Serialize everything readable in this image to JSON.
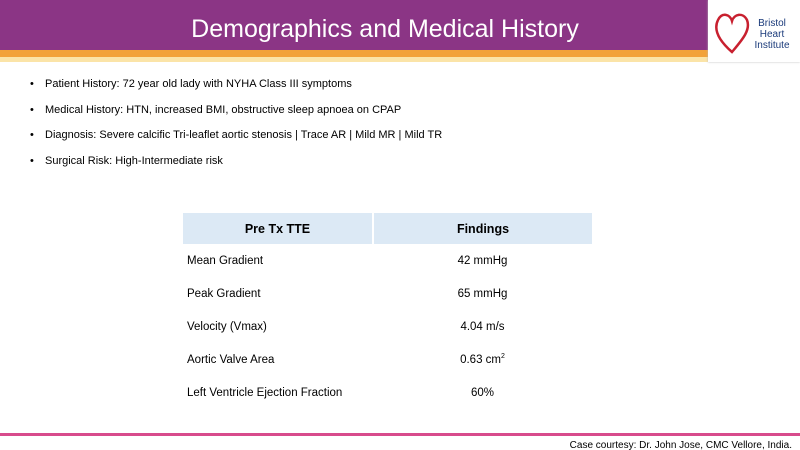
{
  "header": {
    "title": "Demographics and Medical History",
    "logo": [
      "Bristol",
      "Heart",
      "Institute"
    ]
  },
  "bullets": [
    "Patient History: 72 year old lady with NYHA Class III symptoms",
    "Medical History: HTN, increased BMI, obstructive sleep apnoea on CPAP",
    "Diagnosis: Severe calcific Tri-leaflet aortic stenosis | Trace AR | Mild MR | Mild TR",
    "Surgical Risk: High-Intermediate risk"
  ],
  "table": {
    "headers": [
      "Pre Tx TTE",
      "Findings"
    ],
    "rows": [
      [
        "Mean Gradient",
        "42 mmHg"
      ],
      [
        "Peak Gradient",
        "65 mmHg"
      ],
      [
        "Velocity (Vmax)",
        "4.04 m/s"
      ],
      [
        "Aortic Valve Area",
        {
          "text": "0.63 cm",
          "sup": "2"
        }
      ],
      [
        "Left Ventricle Ejection Fraction",
        "60%"
      ]
    ]
  },
  "footer": "Case courtesy: Dr. John Jose, CMC Vellore,  India."
}
